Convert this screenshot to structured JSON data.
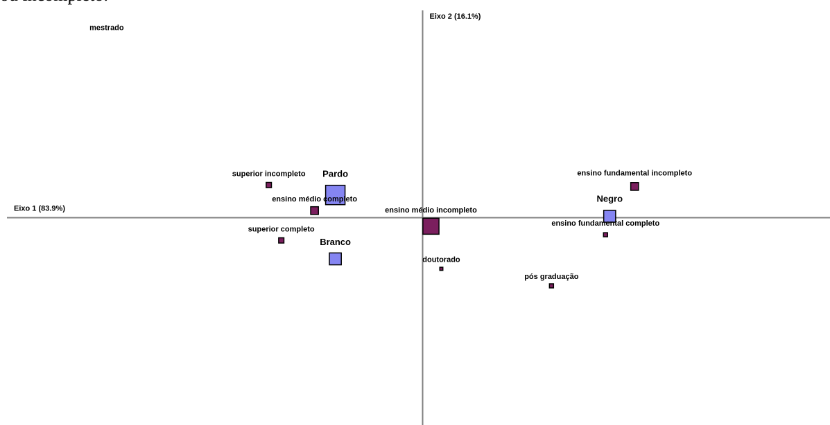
{
  "page": {
    "top_text": "ou incompleto."
  },
  "chart_data": {
    "type": "scatter",
    "title": "",
    "xlabel": "Eixo 1 (83.9%)",
    "ylabel": "Eixo 2 (16.1%)",
    "xlim": [
      -1.0,
      0.98
    ],
    "ylim": [
      -0.73,
      0.73
    ],
    "grid": false,
    "colors": {
      "educacao": "#7b1f5e",
      "raca": "#8585f2",
      "axis": "#808080"
    },
    "series": [
      {
        "group": "educacao",
        "points": [
          {
            "label": "mestrado",
            "x": -0.76,
            "y": 0.66,
            "mass": 0
          },
          {
            "label": "superior incompleto",
            "x": -0.37,
            "y": 0.115,
            "mass": 0.15
          },
          {
            "label": "ensino médio completo",
            "x": -0.26,
            "y": 0.025,
            "mass": 0.3
          },
          {
            "label": "superior completo",
            "x": -0.34,
            "y": -0.08,
            "mass": 0.15
          },
          {
            "label": "ensino médio incompleto",
            "x": 0.02,
            "y": -0.03,
            "mass": 0.8
          },
          {
            "label": "doutorado",
            "x": 0.045,
            "y": -0.18,
            "mass": 0.02
          },
          {
            "label": "pós graduação",
            "x": 0.31,
            "y": -0.24,
            "mass": 0.08
          },
          {
            "label": "ensino fundamental incompleto",
            "x": 0.51,
            "y": 0.11,
            "mass": 0.3
          },
          {
            "label": "ensino fundamental completo",
            "x": 0.44,
            "y": -0.06,
            "mass": 0.08
          }
        ]
      },
      {
        "group": "raca",
        "points": [
          {
            "label": "Pardo",
            "x": -0.21,
            "y": 0.08,
            "mass": 1.0
          },
          {
            "label": "Branco",
            "x": -0.21,
            "y": -0.145,
            "mass": 0.55
          },
          {
            "label": "Negro",
            "x": 0.45,
            "y": 0.005,
            "mass": 0.55
          }
        ]
      }
    ]
  }
}
